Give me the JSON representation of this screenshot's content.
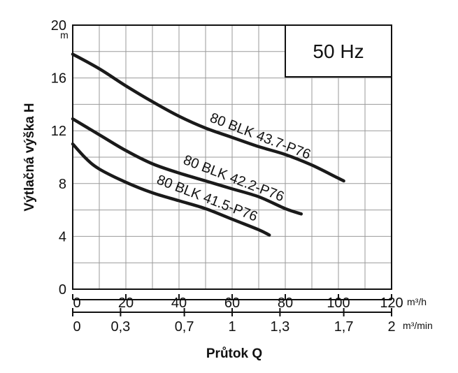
{
  "chart_data": {
    "type": "line",
    "title": "",
    "freq_label": "50 Hz",
    "xlabel": "Průtok Q",
    "ylabel": "Výtlačná výška H",
    "y_unit": "m",
    "x_unit_primary": "m³/h",
    "x_unit_secondary": "m³/min",
    "xlim": [
      0,
      120
    ],
    "ylim": [
      0,
      20
    ],
    "x_ticks": [
      "0",
      "20",
      "40",
      "60",
      "80",
      "100",
      "120"
    ],
    "x_ticks_secondary": [
      {
        "label": "0",
        "value": 0
      },
      {
        "label": "0,3",
        "value": 0.3
      },
      {
        "label": "0,7",
        "value": 0.7
      },
      {
        "label": "1",
        "value": 1
      },
      {
        "label": "1,3",
        "value": 1.3
      },
      {
        "label": "1,7",
        "value": 1.7
      },
      {
        "label": "2",
        "value": 2
      }
    ],
    "y_ticks": [
      "0",
      "4",
      "8",
      "12",
      "16",
      "20"
    ],
    "grid": true,
    "series": [
      {
        "name": "80 BLK 43.7-P76",
        "x": [
          0,
          10,
          20,
          30,
          40,
          50,
          60,
          70,
          80,
          90,
          100,
          102
        ],
        "y": [
          17.8,
          16.7,
          15.4,
          14.2,
          13.1,
          12.2,
          11.5,
          10.8,
          10.2,
          9.4,
          8.4,
          8.2
        ]
      },
      {
        "name": "80 BLK 42.2-P76",
        "x": [
          0,
          10,
          20,
          30,
          40,
          50,
          60,
          70,
          80,
          86
        ],
        "y": [
          12.9,
          11.7,
          10.5,
          9.5,
          8.8,
          8.2,
          7.6,
          7.0,
          6.1,
          5.7
        ]
      },
      {
        "name": "80 BLK 41.5-P76",
        "x": [
          0,
          5,
          10,
          20,
          30,
          40,
          50,
          60,
          70,
          74
        ],
        "y": [
          11.0,
          9.9,
          9.1,
          8.1,
          7.3,
          6.7,
          6.1,
          5.3,
          4.5,
          4.1
        ]
      }
    ]
  }
}
